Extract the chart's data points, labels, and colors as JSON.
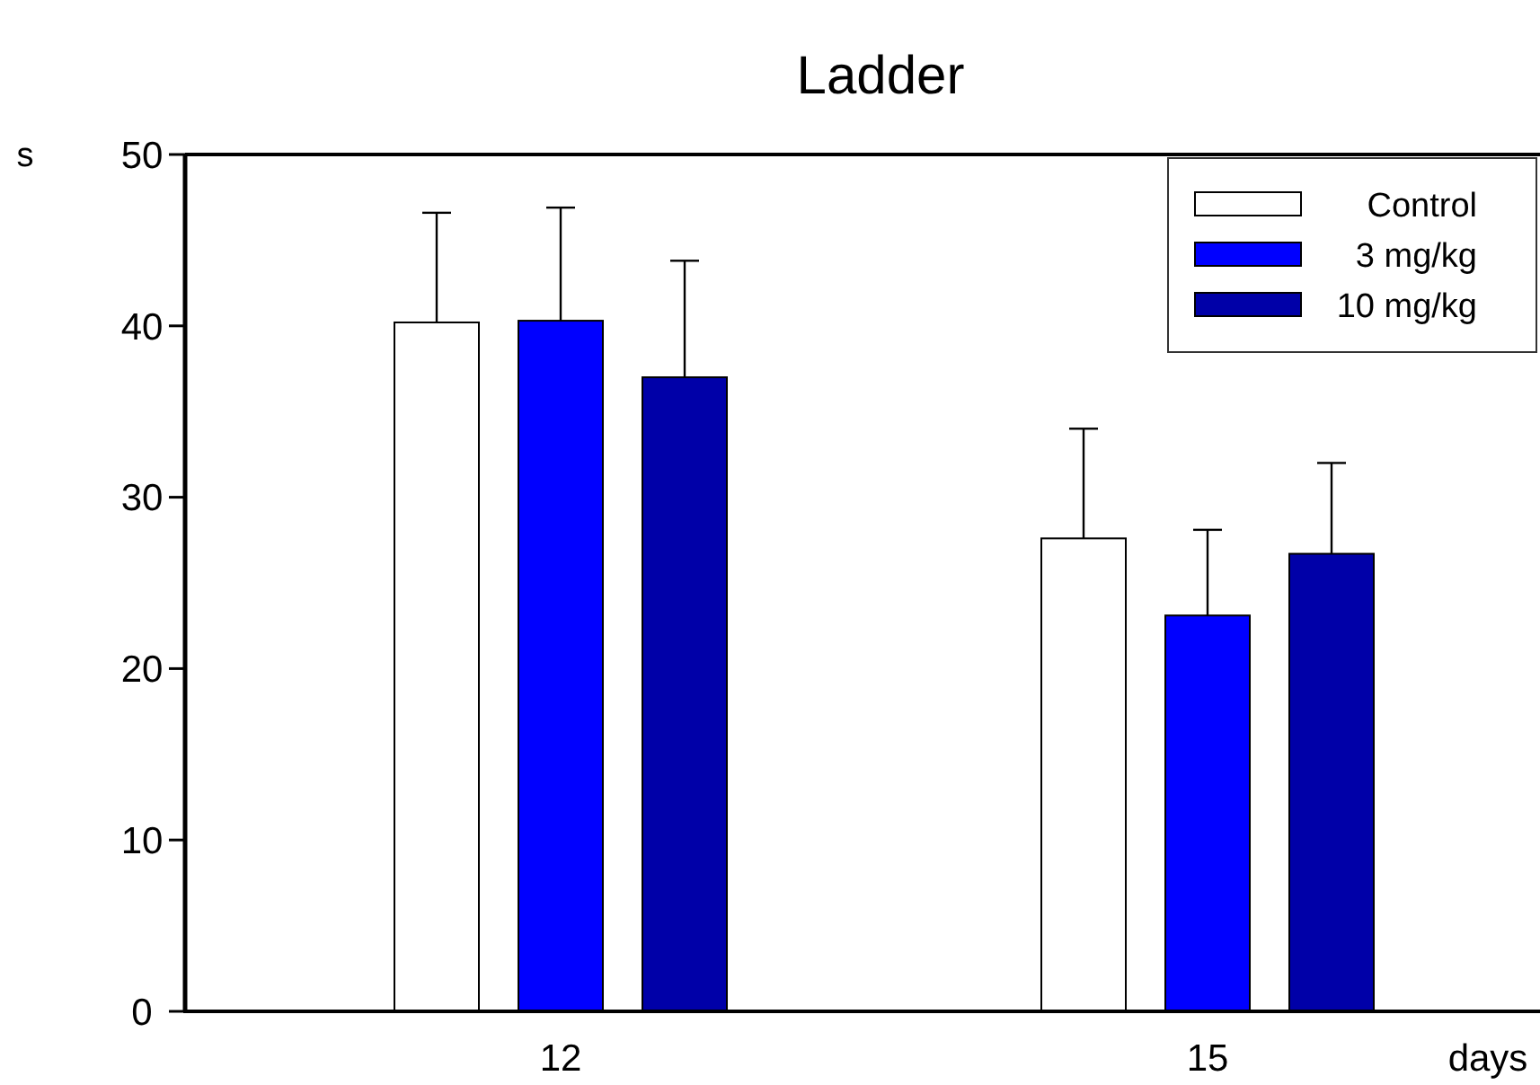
{
  "chart_data": {
    "type": "bar",
    "title": "Ladder",
    "xlabel": "days",
    "ylabel": "s",
    "categories": [
      "12",
      "15"
    ],
    "series": [
      {
        "name": "Control",
        "color": "#ffffff",
        "values": [
          40.2,
          27.6
        ],
        "errors": [
          [
            40.2,
            46.6
          ],
          [
            27.6,
            34.0
          ]
        ]
      },
      {
        "name": "3 mg/kg",
        "color": "#0000ff",
        "values": [
          40.3,
          23.1
        ],
        "errors": [
          [
            40.3,
            46.9
          ],
          [
            23.1,
            28.1
          ]
        ]
      },
      {
        "name": "10 mg/kg",
        "color": "#0000a8",
        "values": [
          37.0,
          26.7
        ],
        "errors": [
          [
            37.0,
            43.8
          ],
          [
            26.7,
            32.0
          ]
        ]
      }
    ],
    "ylim": [
      0,
      50
    ],
    "yticks": [
      0,
      10,
      20,
      30,
      40,
      50
    ],
    "grid": false,
    "legend": "top right"
  }
}
